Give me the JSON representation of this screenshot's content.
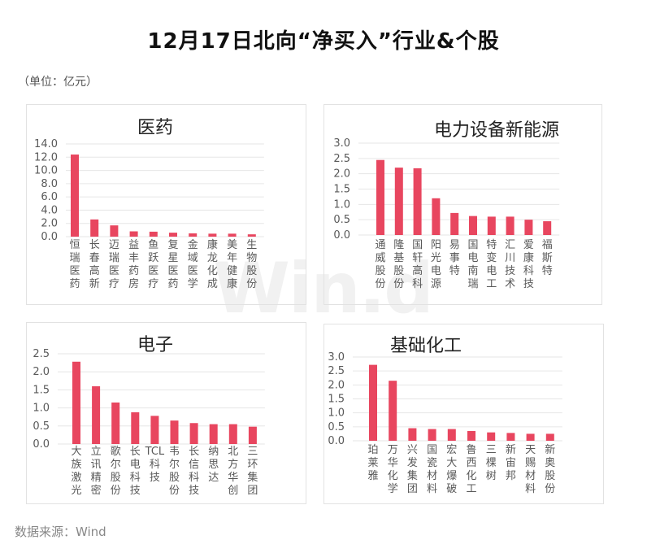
{
  "header": {
    "title": "12月17日北向“净买入”行业&个股",
    "unit": "（单位：亿元）",
    "source": "数据来源：Wind"
  },
  "watermark": "Win.d",
  "colors": {
    "bar": "#e8465f",
    "grid": "#e6e6e6",
    "text": "#595959"
  },
  "chart_data": [
    {
      "type": "bar",
      "title": "医药",
      "categories": [
        "恒瑞医药",
        "长春高新",
        "迈瑞医疗",
        "益丰药房",
        "鱼跃医疗",
        "复星医药",
        "金域医学",
        "康龙化成",
        "美年健康",
        "生物股份"
      ],
      "values": [
        12.4,
        2.6,
        1.7,
        0.8,
        0.75,
        0.6,
        0.5,
        0.45,
        0.45,
        0.35
      ],
      "ylim": [
        0,
        14
      ],
      "yticks": [
        "0.0",
        "2.0",
        "4.0",
        "6.0",
        "8.0",
        "10.0",
        "12.0",
        "14.0"
      ],
      "grid": true
    },
    {
      "type": "bar",
      "title": "电力设备新能源",
      "categories": [
        "通威股份",
        "隆基股份",
        "国轩高科",
        "阳光电源",
        "易事特",
        "国电南瑞",
        "特变电工",
        "汇川技术",
        "爱康科技",
        "福斯特"
      ],
      "values": [
        2.45,
        2.2,
        2.18,
        1.2,
        0.72,
        0.62,
        0.6,
        0.6,
        0.5,
        0.45
      ],
      "ylim": [
        0,
        3
      ],
      "yticks": [
        "0.0",
        "0.5",
        "1.0",
        "1.5",
        "2.0",
        "2.5",
        "3.0"
      ],
      "grid": true
    },
    {
      "type": "bar",
      "title": "电子",
      "categories": [
        "大族激光",
        "立讯精密",
        "歌尔股份",
        "长电科技",
        "TCL科技",
        "韦尔股份",
        "长信科技",
        "纳思达",
        "北方华创",
        "三环集团"
      ],
      "values": [
        2.28,
        1.6,
        1.15,
        0.88,
        0.78,
        0.65,
        0.58,
        0.55,
        0.55,
        0.48
      ],
      "ylim": [
        0,
        2.5
      ],
      "yticks": [
        "0.0",
        "0.5",
        "1.0",
        "1.5",
        "2.0",
        "2.5"
      ],
      "grid": true
    },
    {
      "type": "bar",
      "title": "基础化工",
      "categories": [
        "珀莱雅",
        "万华化学",
        "兴发集团",
        "国瓷材料",
        "宏大爆破",
        "鲁西化工",
        "三棵树",
        "新宙邦",
        "天赐材料",
        "新奥股份"
      ],
      "values": [
        2.72,
        2.15,
        0.45,
        0.42,
        0.42,
        0.35,
        0.3,
        0.28,
        0.25,
        0.25
      ],
      "ylim": [
        0,
        3
      ],
      "yticks": [
        "0.0",
        "0.5",
        "1.0",
        "1.5",
        "2.0",
        "2.5",
        "3.0"
      ],
      "grid": true
    }
  ]
}
